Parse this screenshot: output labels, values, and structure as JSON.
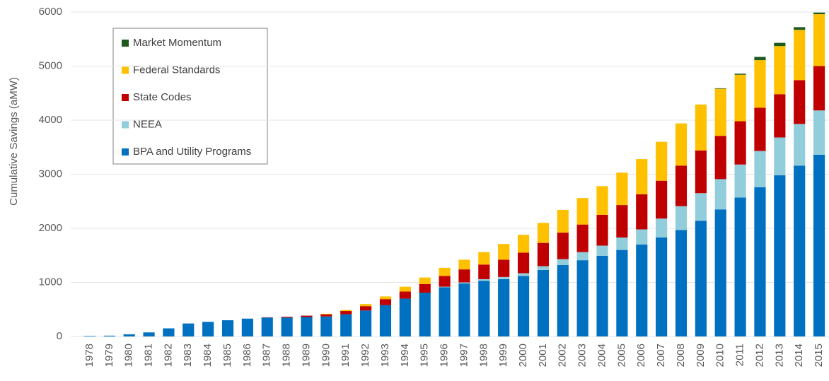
{
  "chart_data": {
    "type": "stacked_bar",
    "y_label": "Cumulative Savings (aMW)",
    "categories": [
      "1978",
      "1979",
      "1980",
      "1981",
      "1982",
      "1983",
      "1984",
      "1985",
      "1986",
      "1987",
      "1988",
      "1989",
      "1990",
      "1991",
      "1992",
      "1993",
      "1994",
      "1995",
      "1996",
      "1997",
      "1998",
      "1999",
      "2000",
      "2001",
      "2002",
      "2003",
      "2004",
      "2005",
      "2006",
      "2007",
      "2008",
      "2009",
      "2010",
      "2011",
      "2012",
      "2013",
      "2014",
      "2015"
    ],
    "series": [
      {
        "name": "BPA and Utility Programs",
        "color": "#0070c0",
        "values": [
          10,
          15,
          40,
          75,
          150,
          240,
          270,
          300,
          330,
          350,
          350,
          360,
          370,
          410,
          480,
          580,
          700,
          810,
          910,
          980,
          1030,
          1060,
          1120,
          1230,
          1320,
          1410,
          1490,
          1600,
          1700,
          1830,
          1970,
          2140,
          2350,
          2570,
          2760,
          2980,
          3160,
          3360
        ]
      },
      {
        "name": "NEEA",
        "color": "#92cddc",
        "values": [
          0,
          0,
          0,
          0,
          0,
          0,
          0,
          0,
          0,
          0,
          0,
          0,
          0,
          0,
          0,
          0,
          0,
          0,
          10,
          20,
          30,
          40,
          50,
          70,
          110,
          150,
          190,
          230,
          280,
          350,
          440,
          510,
          560,
          610,
          670,
          700,
          770,
          820
        ]
      },
      {
        "name": "State Codes",
        "color": "#c00000",
        "values": [
          0,
          0,
          0,
          0,
          0,
          0,
          0,
          0,
          0,
          5,
          15,
          25,
          40,
          60,
          80,
          110,
          130,
          160,
          200,
          240,
          270,
          320,
          380,
          430,
          490,
          510,
          570,
          600,
          650,
          700,
          750,
          790,
          800,
          800,
          800,
          800,
          810,
          820
        ]
      },
      {
        "name": "Federal Standards",
        "color": "#ffc000",
        "values": [
          0,
          0,
          0,
          0,
          0,
          0,
          0,
          0,
          0,
          0,
          0,
          0,
          10,
          20,
          40,
          50,
          90,
          120,
          150,
          180,
          230,
          290,
          330,
          370,
          420,
          490,
          530,
          600,
          650,
          720,
          780,
          850,
          870,
          860,
          880,
          890,
          930,
          960
        ]
      },
      {
        "name": "Market Momentum",
        "color": "#1e5a1e",
        "values": [
          0,
          0,
          0,
          0,
          0,
          0,
          0,
          0,
          0,
          0,
          0,
          0,
          0,
          0,
          0,
          0,
          0,
          0,
          0,
          0,
          0,
          0,
          0,
          0,
          0,
          0,
          0,
          0,
          0,
          0,
          0,
          0,
          10,
          20,
          60,
          60,
          50,
          30
        ]
      }
    ],
    "ylim": [
      0,
      6000
    ],
    "yticks": [
      0,
      1000,
      2000,
      3000,
      4000,
      5000,
      6000
    ],
    "grid": true,
    "legend": "upper-left"
  }
}
